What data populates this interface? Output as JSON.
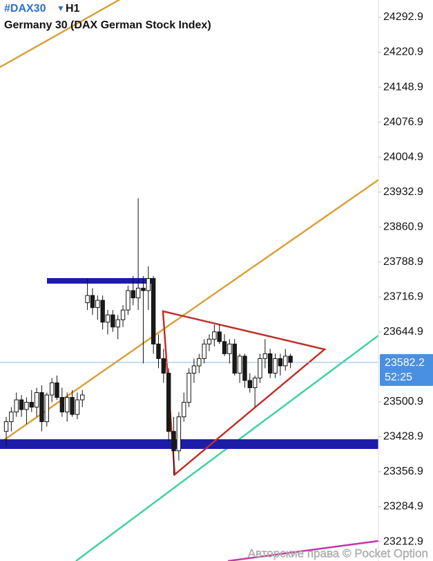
{
  "chart_data": {
    "type": "candlestick",
    "symbol": "#DAX30",
    "timeframe": "H1",
    "title": "Germany 30 (DAX German Stock Index)",
    "watermark": "Авторские права © Pocket Option",
    "last_price": 23582.2,
    "timer": "52:25",
    "ylim": [
      23173.1,
      24328.5
    ],
    "yticks": [
      24292.9,
      24220.9,
      24148.9,
      24076.9,
      24004.9,
      23932.9,
      23860.9,
      23788.9,
      23716.9,
      23644.9,
      23500.9,
      23428.9,
      23356.9,
      23284.9,
      23212.9
    ],
    "up_color": "#ffffff",
    "down_color": "#1a1a1a",
    "open": [
      23440,
      23460,
      23480,
      23505,
      23485,
      23500,
      23490,
      23520,
      23460,
      23515,
      23540,
      23510,
      23480,
      23510,
      23475,
      23505,
      23705,
      23720,
      23695,
      23710,
      23665,
      23680,
      23655,
      23670,
      23690,
      23730,
      23715,
      23735,
      23730,
      23755,
      23620,
      23590,
      23560,
      23440,
      23400,
      23470,
      23500,
      23560,
      23575,
      23590,
      23620,
      23630,
      23645,
      23625,
      23600,
      23620,
      23560,
      23595,
      23545,
      23530,
      23550,
      23590,
      23600,
      23560,
      23590,
      23575,
      23595
    ],
    "high": [
      23470,
      23490,
      23520,
      23515,
      23510,
      23525,
      23530,
      23535,
      23520,
      23550,
      23555,
      23530,
      23520,
      23525,
      23520,
      23525,
      23755,
      23735,
      23720,
      23720,
      23690,
      23690,
      23680,
      23700,
      23740,
      23760,
      23920,
      23760,
      23780,
      23760,
      23640,
      23610,
      23570,
      23470,
      23480,
      23520,
      23570,
      23590,
      23600,
      23630,
      23640,
      23660,
      23660,
      23640,
      23630,
      23630,
      23600,
      23600,
      23560,
      23555,
      23600,
      23630,
      23610,
      23600,
      23600,
      23610,
      23600
    ],
    "low": [
      23410,
      23440,
      23470,
      23470,
      23455,
      23480,
      23470,
      23440,
      23450,
      23500,
      23505,
      23470,
      23460,
      23470,
      23465,
      23490,
      23690,
      23680,
      23670,
      23650,
      23640,
      23645,
      23630,
      23655,
      23680,
      23700,
      23690,
      23580,
      23690,
      23600,
      23570,
      23540,
      23420,
      23350,
      23380,
      23460,
      23490,
      23540,
      23560,
      23580,
      23605,
      23615,
      23620,
      23595,
      23580,
      23555,
      23540,
      23530,
      23520,
      23490,
      23540,
      23570,
      23550,
      23550,
      23555,
      23565,
      23570
    ],
    "close": [
      23460,
      23480,
      23505,
      23485,
      23500,
      23490,
      23520,
      23460,
      23515,
      23540,
      23510,
      23480,
      23510,
      23475,
      23505,
      23515,
      23720,
      23695,
      23710,
      23665,
      23680,
      23655,
      23670,
      23690,
      23730,
      23715,
      23735,
      23730,
      23755,
      23620,
      23590,
      23560,
      23440,
      23400,
      23470,
      23500,
      23560,
      23575,
      23590,
      23620,
      23630,
      23645,
      23625,
      23600,
      23620,
      23560,
      23595,
      23545,
      23530,
      23550,
      23590,
      23600,
      23560,
      23590,
      23575,
      23595,
      23582.2
    ]
  }
}
